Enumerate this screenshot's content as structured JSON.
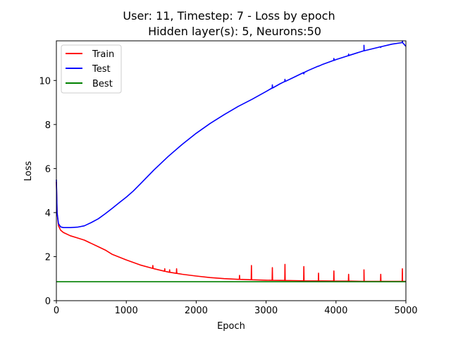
{
  "chart_data": {
    "type": "line",
    "title": "User: 11, Timestep: 7 - Loss by epoch",
    "subtitle": "Hidden layer(s): 5, Neurons:50",
    "xlabel": "Epoch",
    "ylabel": "Loss",
    "xlim": [
      0,
      5000
    ],
    "ylim": [
      0,
      11.8
    ],
    "xticks": [
      0,
      1000,
      2000,
      3000,
      4000,
      5000
    ],
    "yticks": [
      0,
      2,
      4,
      6,
      8,
      10
    ],
    "grid": false,
    "legend_position": "top-left",
    "series": [
      {
        "name": "Train",
        "color": "#ff0000",
        "x": [
          0,
          10,
          30,
          60,
          100,
          200,
          300,
          400,
          500,
          600,
          700,
          800,
          1000,
          1200,
          1400,
          1600,
          1800,
          2000,
          2200,
          2400,
          2600,
          2800,
          3000,
          3200,
          3400,
          3600,
          3800,
          4000,
          4200,
          4400,
          4600,
          4800,
          5000
        ],
        "y": [
          5.4,
          4.0,
          3.4,
          3.2,
          3.1,
          2.95,
          2.85,
          2.75,
          2.6,
          2.45,
          2.3,
          2.1,
          1.85,
          1.62,
          1.45,
          1.3,
          1.2,
          1.12,
          1.05,
          1.0,
          0.97,
          0.95,
          0.93,
          0.92,
          0.91,
          0.9,
          0.9,
          0.89,
          0.89,
          0.88,
          0.88,
          0.88,
          0.88
        ],
        "spikes": [
          [
            1380,
            1.6
          ],
          [
            1550,
            1.45
          ],
          [
            1620,
            1.4
          ],
          [
            1720,
            1.45
          ],
          [
            2620,
            1.15
          ],
          [
            2790,
            1.6
          ],
          [
            3090,
            1.5
          ],
          [
            3270,
            1.65
          ],
          [
            3540,
            1.55
          ],
          [
            3750,
            1.25
          ],
          [
            3970,
            1.35
          ],
          [
            4180,
            1.2
          ],
          [
            4400,
            1.4
          ],
          [
            4640,
            1.2
          ],
          [
            4950,
            1.45
          ]
        ]
      },
      {
        "name": "Test",
        "color": "#0000ff",
        "x": [
          0,
          10,
          30,
          60,
          100,
          200,
          300,
          400,
          500,
          600,
          700,
          800,
          900,
          1000,
          1100,
          1200,
          1400,
          1600,
          1800,
          2000,
          2200,
          2400,
          2600,
          2800,
          3000,
          3200,
          3400,
          3600,
          3800,
          4000,
          4200,
          4400,
          4600,
          4800,
          4950,
          5000
        ],
        "y": [
          5.5,
          4.0,
          3.5,
          3.35,
          3.32,
          3.32,
          3.34,
          3.4,
          3.55,
          3.72,
          3.95,
          4.2,
          4.45,
          4.7,
          4.98,
          5.3,
          5.95,
          6.55,
          7.1,
          7.6,
          8.05,
          8.45,
          8.82,
          9.15,
          9.5,
          9.85,
          10.15,
          10.45,
          10.72,
          10.95,
          11.15,
          11.35,
          11.5,
          11.65,
          11.72,
          11.55
        ],
        "spikes": [
          [
            3090,
            9.8
          ],
          [
            3270,
            10.05
          ],
          [
            3540,
            10.3
          ],
          [
            3750,
            10.65
          ],
          [
            3970,
            11.0
          ],
          [
            4180,
            11.2
          ],
          [
            4400,
            11.6
          ],
          [
            4640,
            11.5
          ],
          [
            4950,
            11.8
          ]
        ]
      },
      {
        "name": "Best",
        "color": "#008000",
        "x": [
          0,
          5000
        ],
        "y": [
          0.86,
          0.86
        ]
      }
    ]
  }
}
